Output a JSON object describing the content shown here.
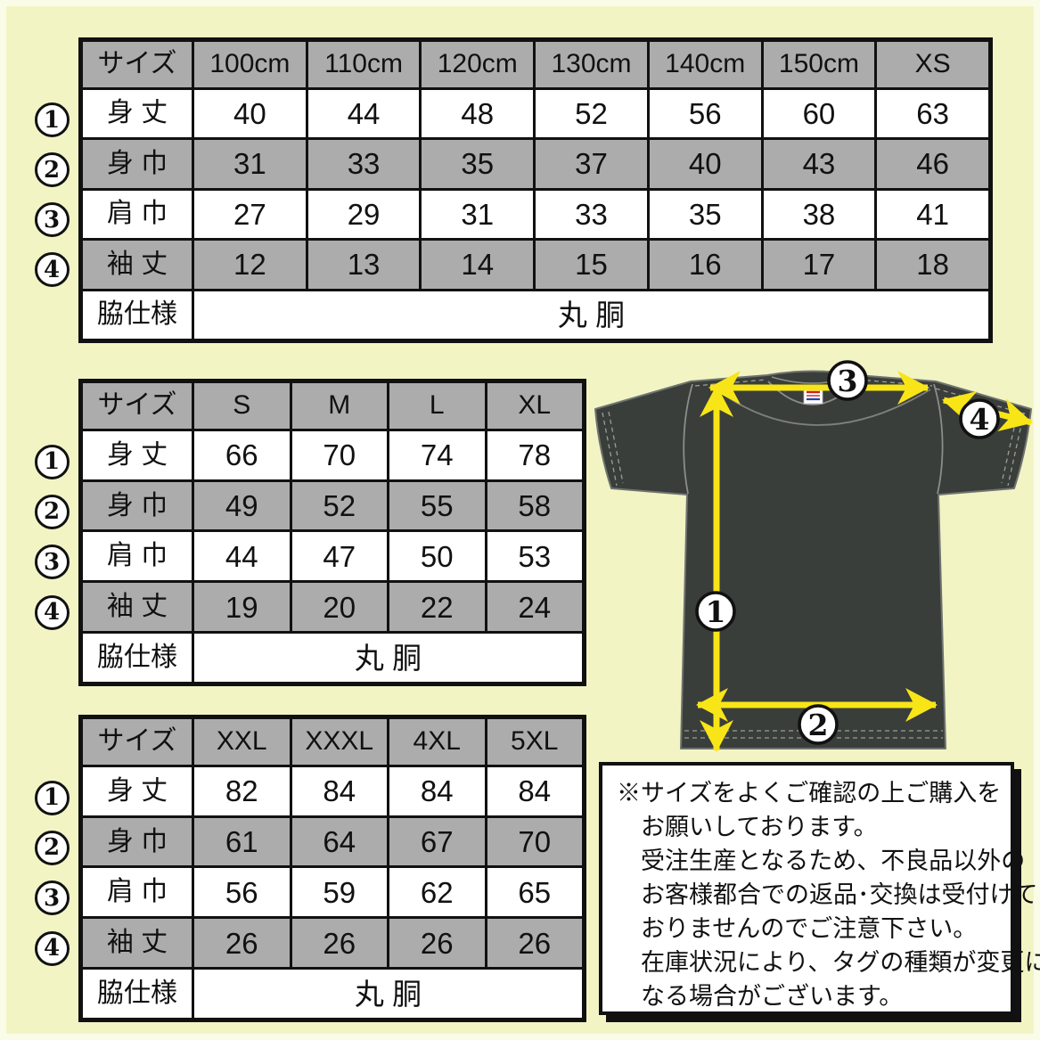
{
  "colors": {
    "background": "#f2f4c4",
    "background_edge": "#fbfce8",
    "table_gray": "#acacac",
    "table_white": "#ffffff",
    "line_black": "#111111",
    "shirt_body": "#3a3e3b",
    "arrow_yellow": "#f8e517",
    "tag_red": "#cc2222",
    "tag_blue": "#2244aa"
  },
  "row_markers": [
    "1",
    "2",
    "3",
    "4"
  ],
  "tables": [
    {
      "header": [
        "サイズ",
        "100cm",
        "110cm",
        "120cm",
        "130cm",
        "140cm",
        "150cm",
        "XS"
      ],
      "rows": [
        {
          "label": "身 丈",
          "values": [
            "40",
            "44",
            "48",
            "52",
            "56",
            "60",
            "63"
          ]
        },
        {
          "label": "身 巾",
          "values": [
            "31",
            "33",
            "35",
            "37",
            "40",
            "43",
            "46"
          ]
        },
        {
          "label": "肩 巾",
          "values": [
            "27",
            "29",
            "31",
            "33",
            "35",
            "38",
            "41"
          ]
        },
        {
          "label": "袖 丈",
          "values": [
            "12",
            "13",
            "14",
            "15",
            "16",
            "17",
            "18"
          ]
        }
      ],
      "footer_label": "脇仕様",
      "footer_value": "丸 胴"
    },
    {
      "header": [
        "サイズ",
        "S",
        "M",
        "L",
        "XL"
      ],
      "rows": [
        {
          "label": "身 丈",
          "values": [
            "66",
            "70",
            "74",
            "78"
          ]
        },
        {
          "label": "身 巾",
          "values": [
            "49",
            "52",
            "55",
            "58"
          ]
        },
        {
          "label": "肩 巾",
          "values": [
            "44",
            "47",
            "50",
            "53"
          ]
        },
        {
          "label": "袖 丈",
          "values": [
            "19",
            "20",
            "22",
            "24"
          ]
        }
      ],
      "footer_label": "脇仕様",
      "footer_value": "丸 胴"
    },
    {
      "header": [
        "サイズ",
        "XXL",
        "XXXL",
        "4XL",
        "5XL"
      ],
      "rows": [
        {
          "label": "身 丈",
          "values": [
            "82",
            "84",
            "84",
            "84"
          ]
        },
        {
          "label": "身 巾",
          "values": [
            "61",
            "64",
            "67",
            "70"
          ]
        },
        {
          "label": "肩 巾",
          "values": [
            "56",
            "59",
            "62",
            "65"
          ]
        },
        {
          "label": "袖 丈",
          "values": [
            "26",
            "26",
            "26",
            "26"
          ]
        }
      ],
      "footer_label": "脇仕様",
      "footer_value": "丸 胴"
    }
  ],
  "diagram": {
    "markers": [
      "1",
      "2",
      "3",
      "4"
    ]
  },
  "note": {
    "lines": [
      "※サイズをよくご確認の上ご購入を",
      "お願いしております。",
      "受注生産となるため、不良品以外の",
      "お客様都合での返品･交換は受付けて",
      "おりませんのでご注意下さい。",
      "在庫状況により、タグの種類が変更に",
      "なる場合がございます。"
    ]
  }
}
